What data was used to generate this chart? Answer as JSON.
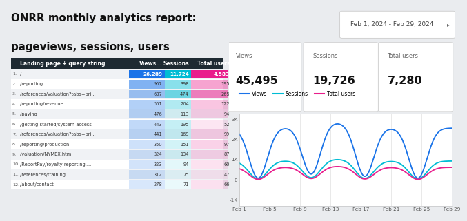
{
  "title_line1": "ONRR monthly analytics report:",
  "title_line2": "pageviews, sessions, users",
  "date_range": "Feb 1, 2024 - Feb 29, 2024",
  "bg_color": "#eaecef",
  "table_header_bg": "#1e2a32",
  "scorecard_labels": [
    "Views",
    "Sessions",
    "Total users"
  ],
  "scorecard_values": [
    "45,495",
    "19,726",
    "7,280"
  ],
  "table_headers": [
    "Landing page + query string",
    "Views...",
    "Sessions",
    "Total users"
  ],
  "table_rows": [
    [
      "/",
      "26,289",
      "11,724",
      "4,583"
    ],
    [
      "/reporting",
      "907",
      "398",
      "195"
    ],
    [
      "/references/valuation?tabs=pri...",
      "687",
      "474",
      "265"
    ],
    [
      "/reporting/revenue",
      "551",
      "264",
      "122"
    ],
    [
      "/paying",
      "476",
      "113",
      "94"
    ],
    [
      "/getting-started/system-access",
      "443",
      "195",
      "52"
    ],
    [
      "/references/valuation?tabs=pri...",
      "441",
      "169",
      "99"
    ],
    [
      "/reporting/production",
      "350",
      "151",
      "97"
    ],
    [
      "/valuation/NYMEX.htm",
      "324",
      "134",
      "87"
    ],
    [
      "/ReportPay/royalty-reporting....",
      "323",
      "94",
      "60"
    ],
    [
      "/references/training",
      "312",
      "75",
      "47"
    ],
    [
      "/about/contact",
      "278",
      "71",
      "66"
    ]
  ],
  "row1_colors": [
    "#1a73e8",
    "#00bcd4",
    "#e91e8c"
  ],
  "line_colors": [
    "#1a73e8",
    "#00bcd4",
    "#e91e8c"
  ],
  "line_labels": [
    "Views",
    "Sessions",
    "Total users"
  ],
  "x_tick_positions": [
    1,
    5,
    9,
    13,
    17,
    21,
    25,
    29
  ],
  "x_tick_labels": [
    "Feb 1",
    "Feb 5",
    "Feb 9",
    "Feb 13",
    "Feb 17",
    "Feb 21",
    "Feb 25",
    "Feb 29"
  ],
  "y_ticks": [
    -1000,
    0,
    1000,
    2000,
    3000
  ],
  "y_tick_labels": [
    "-1K",
    "0",
    "1K",
    "2K",
    "3K"
  ],
  "ylim": [
    -1300,
    3300
  ],
  "xlim": [
    1,
    29
  ]
}
